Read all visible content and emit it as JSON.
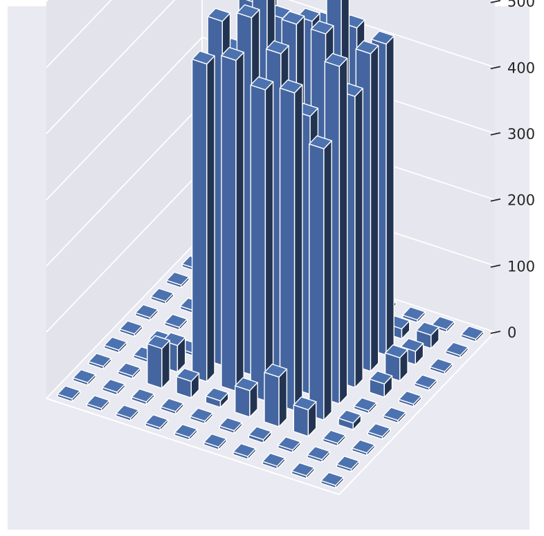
{
  "chart_data": {
    "type": "bar3d",
    "title": "",
    "xlabel": "",
    "ylabel": "",
    "zlabel": "",
    "zlim": [
      0,
      600
    ],
    "zticks": [
      "0",
      "100",
      "200",
      "300",
      "400",
      "500"
    ],
    "grid": true,
    "legend": "none",
    "bar_color": "#4c72b0",
    "grid_size": [
      10,
      10
    ],
    "heights": [
      [
        0,
        0,
        0,
        0,
        0,
        0,
        0,
        0,
        0,
        0
      ],
      [
        0,
        0,
        0,
        0,
        0,
        0,
        0,
        0,
        0,
        0
      ],
      [
        0,
        0,
        60,
        40,
        0,
        0,
        0,
        0,
        0,
        0
      ],
      [
        0,
        0,
        25,
        480,
        520,
        450,
        500,
        470,
        0,
        0
      ],
      [
        0,
        0,
        10,
        500,
        540,
        560,
        490,
        430,
        0,
        0
      ],
      [
        0,
        0,
        40,
        470,
        500,
        520,
        500,
        470,
        55,
        0
      ],
      [
        0,
        5,
        75,
        480,
        420,
        520,
        560,
        480,
        70,
        5
      ],
      [
        0,
        0,
        40,
        410,
        510,
        440,
        480,
        470,
        15,
        0
      ],
      [
        0,
        0,
        0,
        10,
        0,
        20,
        35,
        20,
        20,
        0
      ],
      [
        0,
        0,
        0,
        0,
        0,
        0,
        0,
        0,
        0,
        0
      ]
    ]
  }
}
